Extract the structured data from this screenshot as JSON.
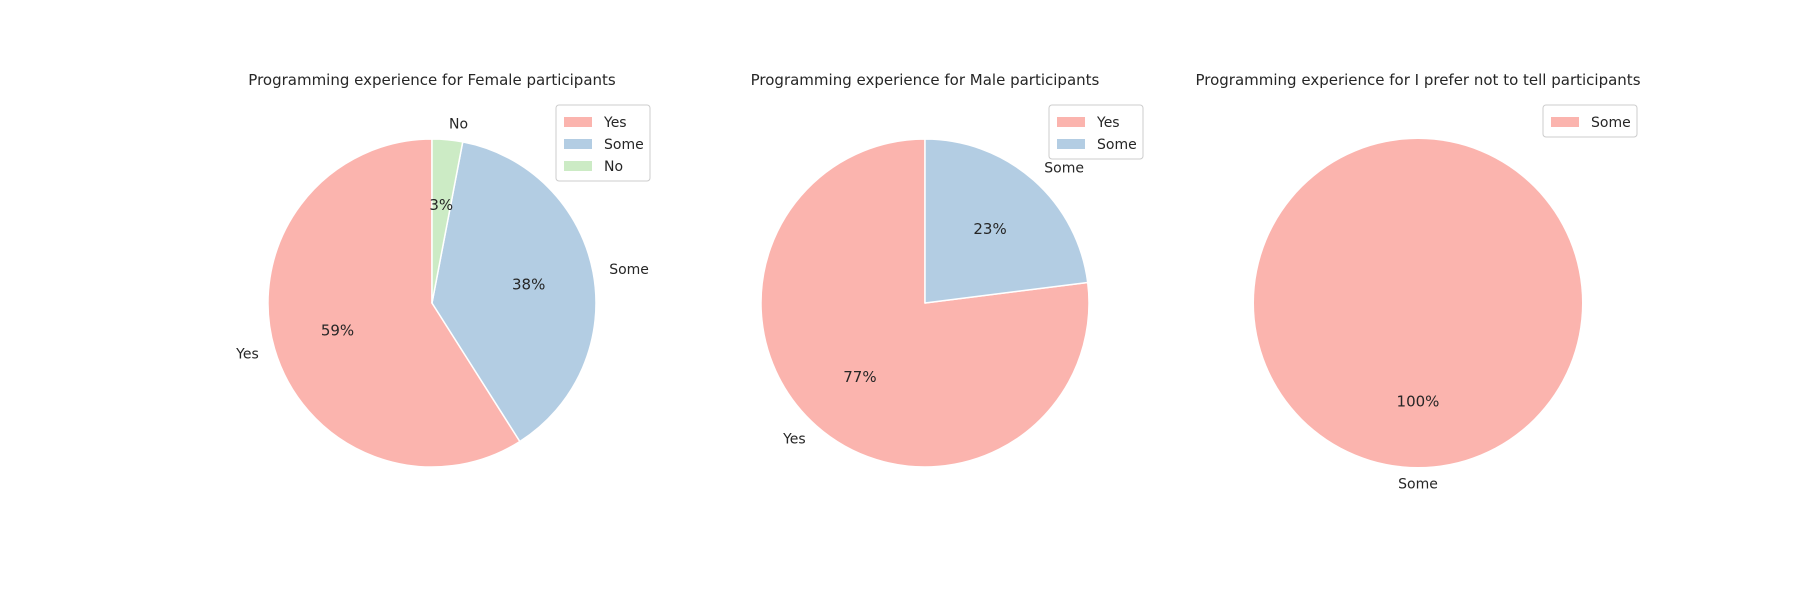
{
  "chart_data": [
    {
      "type": "pie",
      "title": "Programming experience for Female participants",
      "categories": [
        "Yes",
        "Some",
        "No"
      ],
      "values": [
        59,
        38,
        3
      ],
      "value_labels": [
        "59%",
        "38%",
        "3%"
      ],
      "colors": [
        "#fbb4ae",
        "#b3cde3",
        "#ccebc5"
      ],
      "legend": [
        "Yes",
        "Some",
        "No"
      ],
      "legend_placement": "top-right"
    },
    {
      "type": "pie",
      "title": "Programming experience for Male participants",
      "categories": [
        "Yes",
        "Some"
      ],
      "values": [
        77,
        23
      ],
      "value_labels": [
        "77%",
        "23%"
      ],
      "colors": [
        "#fbb4ae",
        "#b3cde3"
      ],
      "legend": [
        "Yes",
        "Some"
      ],
      "legend_placement": "top-right"
    },
    {
      "type": "pie",
      "title": "Programming experience for I prefer not to tell participants",
      "categories": [
        "Some"
      ],
      "values": [
        100
      ],
      "value_labels": [
        "100%"
      ],
      "colors": [
        "#fbb4ae"
      ],
      "legend": [
        "Some"
      ],
      "legend_placement": "top-right"
    }
  ]
}
